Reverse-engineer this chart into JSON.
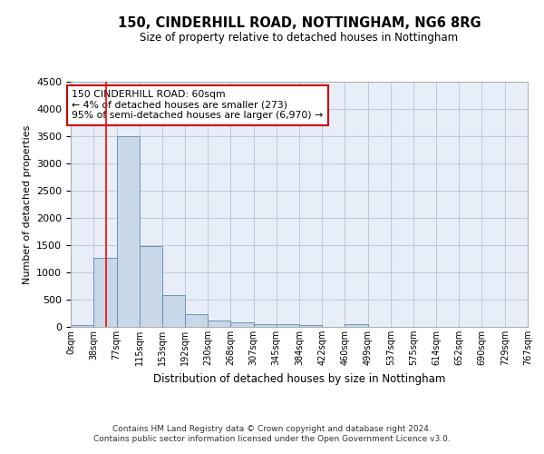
{
  "title": "150, CINDERHILL ROAD, NOTTINGHAM, NG6 8RG",
  "subtitle": "Size of property relative to detached houses in Nottingham",
  "xlabel": "Distribution of detached houses by size in Nottingham",
  "ylabel": "Number of detached properties",
  "bin_edges": [
    0,
    38,
    77,
    115,
    153,
    192,
    230,
    268,
    307,
    345,
    384,
    422,
    460,
    499,
    537,
    575,
    614,
    652,
    690,
    729,
    767
  ],
  "bar_heights": [
    30,
    1270,
    3500,
    1480,
    580,
    240,
    115,
    80,
    45,
    45,
    30,
    0,
    45,
    0,
    0,
    0,
    0,
    0,
    0,
    0
  ],
  "bar_color": "#c8d8e8",
  "bar_edge_color": "#5a8ab0",
  "grid_color": "#c0c8d8",
  "background_color": "#e8eef8",
  "red_line_x": 60,
  "annotation_line1": "150 CINDERHILL ROAD: 60sqm",
  "annotation_line2": "← 4% of detached houses are smaller (273)",
  "annotation_line3": "95% of semi-detached houses are larger (6,970) →",
  "annotation_box_color": "#ffffff",
  "annotation_box_edge": "#cc0000",
  "ylim": [
    0,
    4500
  ],
  "yticks": [
    0,
    500,
    1000,
    1500,
    2000,
    2500,
    3000,
    3500,
    4000,
    4500
  ],
  "footer1": "Contains HM Land Registry data © Crown copyright and database right 2024.",
  "footer2": "Contains public sector information licensed under the Open Government Licence v3.0."
}
